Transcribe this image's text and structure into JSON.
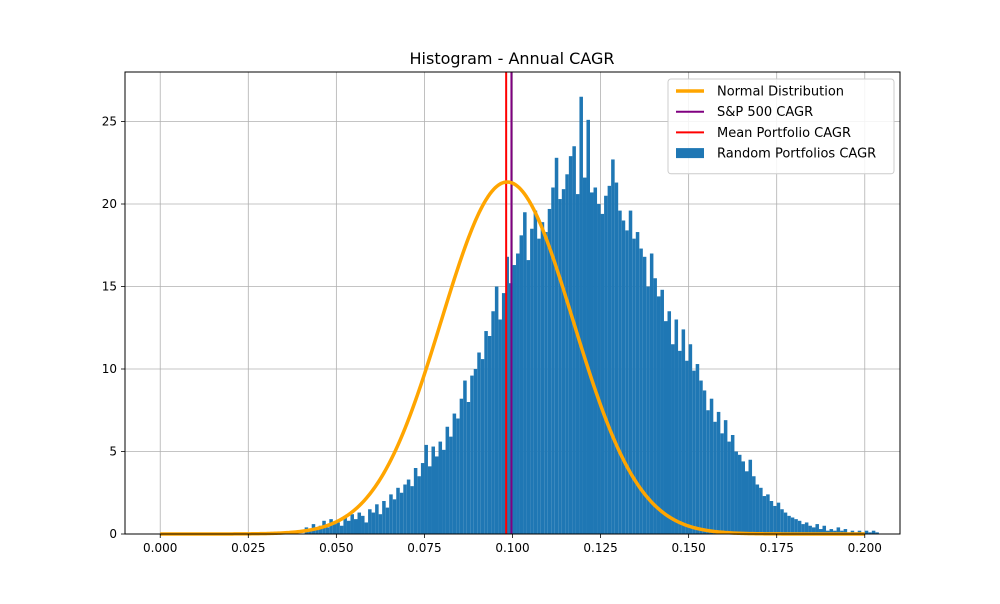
{
  "chart_data": {
    "type": "bar",
    "title": "Histogram - Annual CAGR",
    "xlabel": "",
    "ylabel": "",
    "xlim": [
      -0.01,
      0.21
    ],
    "ylim": [
      0,
      28
    ],
    "x_ticks": [
      0.0,
      0.025,
      0.05,
      0.075,
      0.1,
      0.125,
      0.15,
      0.175,
      0.2
    ],
    "x_tick_labels": [
      "0.000",
      "0.025",
      "0.050",
      "0.075",
      "0.100",
      "0.125",
      "0.150",
      "0.175",
      "0.200"
    ],
    "y_ticks": [
      0,
      5,
      10,
      15,
      20,
      25
    ],
    "y_tick_labels": [
      "0",
      "5",
      "10",
      "15",
      "20",
      "25"
    ],
    "grid": true,
    "legend_position": "top-right",
    "histogram": {
      "name": "Random Portfolios CAGR",
      "color": "#1f77b4",
      "bin_width": 0.001,
      "bin_start": 0.041,
      "values": [
        0.4,
        0.2,
        0.6,
        0.3,
        0.5,
        0.8,
        0.4,
        0.9,
        0.6,
        0.7,
        0.5,
        1.0,
        0.8,
        1.2,
        0.9,
        1.3,
        1.1,
        0.7,
        1.5,
        1.3,
        1.8,
        1.2,
        2.0,
        1.6,
        2.4,
        2.1,
        2.8,
        2.5,
        3.0,
        3.3,
        2.9,
        4.0,
        3.5,
        4.3,
        5.4,
        4.1,
        5.3,
        4.7,
        5.6,
        5.1,
        6.5,
        5.9,
        7.3,
        7.0,
        8.2,
        9.3,
        8.0,
        9.6,
        10.0,
        11.0,
        10.6,
        12.3,
        12.0,
        13.5,
        15.0,
        13.0,
        14.6,
        16.8,
        15.2,
        16.3,
        17.0,
        18.1,
        19.5,
        16.6,
        18.5,
        19.6,
        17.9,
        18.9,
        18.3,
        19.7,
        21.0,
        22.8,
        20.3,
        20.9,
        21.8,
        22.9,
        23.5,
        20.6,
        26.5,
        21.6,
        25.1,
        20.7,
        21.0,
        20.0,
        19.4,
        20.5,
        21.1,
        22.7,
        21.3,
        19.6,
        19.0,
        18.4,
        19.6,
        17.9,
        18.3,
        17.3,
        16.8,
        15.0,
        17.0,
        15.5,
        14.4,
        14.8,
        12.9,
        13.5,
        11.5,
        13.0,
        11.1,
        12.4,
        10.5,
        11.5,
        9.9,
        10.3,
        9.3,
        8.7,
        7.5,
        8.2,
        6.8,
        7.4,
        6.1,
        6.9,
        5.6,
        6.0,
        5.0,
        4.8,
        4.4,
        3.8,
        4.5,
        3.5,
        3.0,
        2.8,
        2.3,
        2.4,
        2.0,
        1.7,
        1.9,
        1.5,
        1.3,
        1.1,
        1.0,
        0.9,
        0.8,
        0.6,
        0.7,
        0.5,
        0.4,
        0.6,
        0.3,
        0.5,
        0.2,
        0.3,
        0.2,
        0.4,
        0.2,
        0.3,
        0.1,
        0.2,
        0.1,
        0.2,
        0.1,
        0.2,
        0.1,
        0.2,
        0.1
      ]
    },
    "normal_curve": {
      "name": "Normal Distribution",
      "color": "#ffa500",
      "mean": 0.0985,
      "std": 0.0187,
      "x_range": [
        0.0,
        0.2
      ]
    },
    "vlines": [
      {
        "name": "S&P 500 CAGR",
        "color": "#800080",
        "x": 0.0997
      },
      {
        "name": "Mean Portfolio CAGR",
        "color": "#ff0000",
        "x": 0.0982
      }
    ],
    "legend": [
      {
        "label": "Normal Distribution",
        "color": "#ffa500",
        "kind": "thick-line"
      },
      {
        "label": "S&P 500 CAGR",
        "color": "#800080",
        "kind": "line"
      },
      {
        "label": "Mean Portfolio CAGR",
        "color": "#ff0000",
        "kind": "line"
      },
      {
        "label": "Random Portfolios CAGR",
        "color": "#1f77b4",
        "kind": "patch"
      }
    ]
  }
}
